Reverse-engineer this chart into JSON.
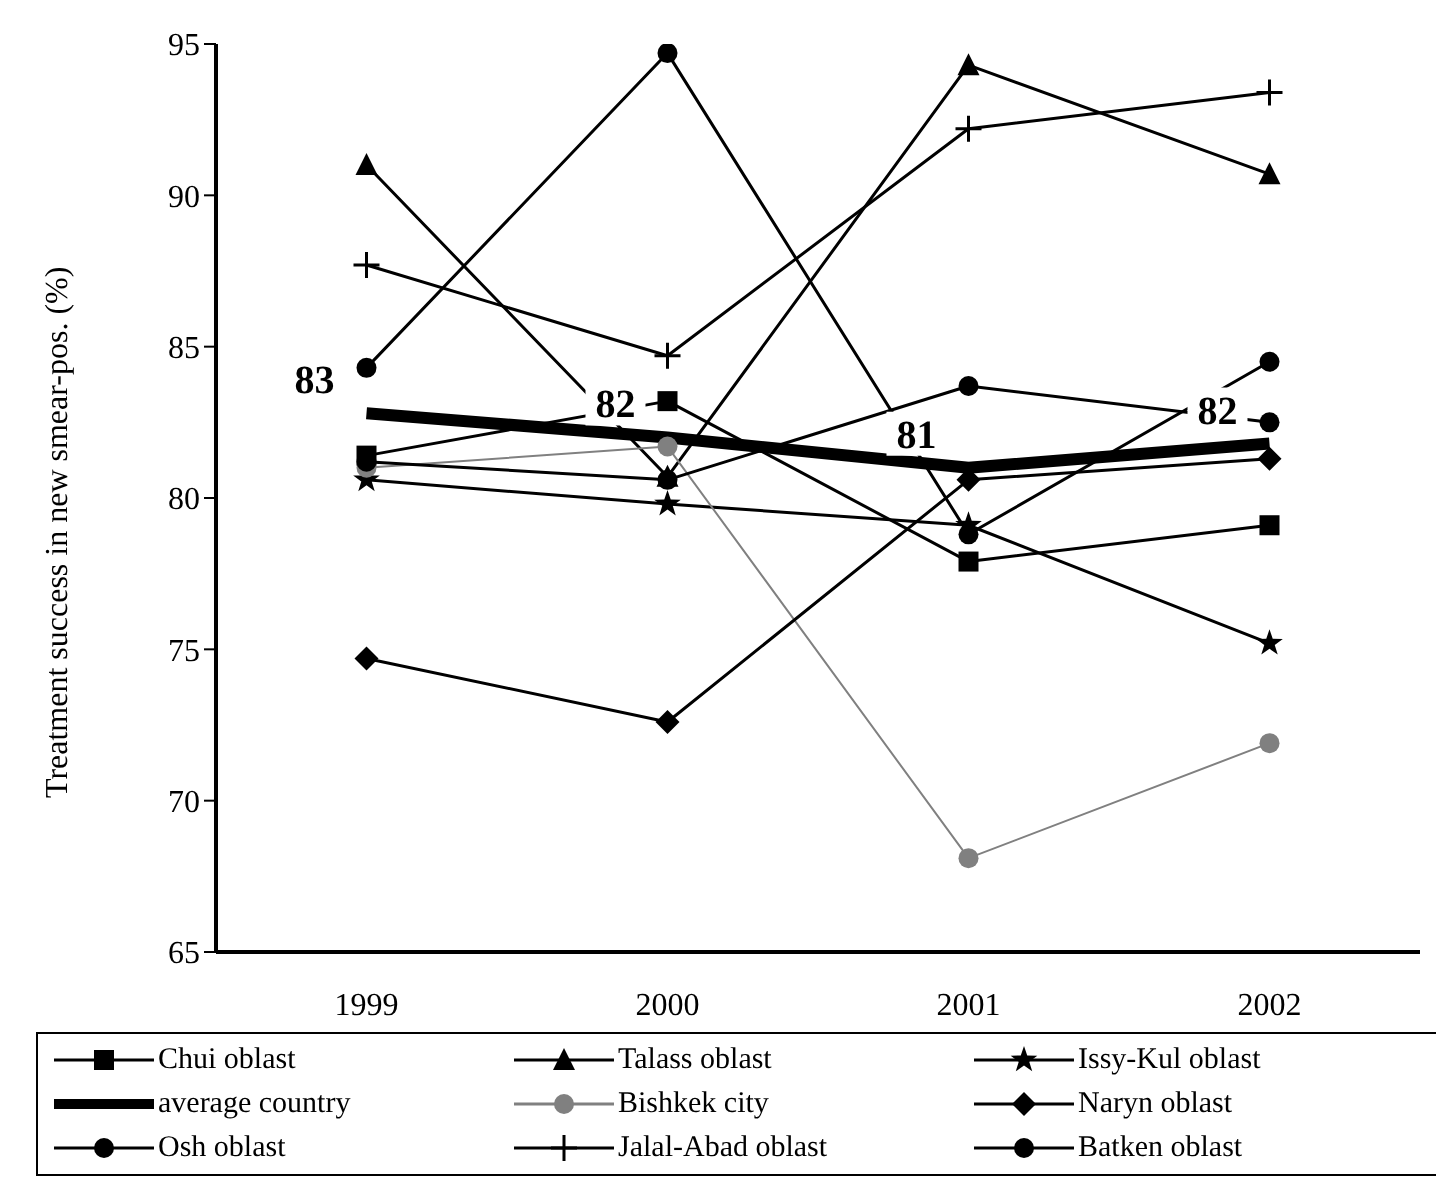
{
  "chart_data": {
    "type": "line",
    "ylabel": "Treatment success in new smear-pos. (%)",
    "categories": [
      "1999",
      "2000",
      "2001",
      "2002"
    ],
    "ylim": [
      65,
      95
    ],
    "yticks": [
      65,
      70,
      75,
      80,
      85,
      90,
      95
    ],
    "grid": false,
    "legend": "bottom",
    "series": [
      {
        "name": "Chui oblast",
        "color": "#000000",
        "marker": "square",
        "values": [
          81.4,
          83.2,
          77.9,
          79.1
        ]
      },
      {
        "name": "Talass oblast",
        "color": "#000000",
        "marker": "triangle",
        "values": [
          91.0,
          80.7,
          94.3,
          90.7
        ]
      },
      {
        "name": "Issy-Kul oblast",
        "color": "#000000",
        "marker": "star",
        "values": [
          80.6,
          79.8,
          79.1,
          75.2
        ]
      },
      {
        "name": "average country",
        "color": "#000000",
        "marker": "none",
        "values": [
          82.8,
          82.0,
          81.0,
          81.8
        ],
        "value_labels": [
          "83",
          "82",
          "81",
          "82"
        ]
      },
      {
        "name": "Bishkek city",
        "color": "#808080",
        "marker": "circle",
        "values": [
          81.0,
          81.7,
          68.1,
          71.9
        ]
      },
      {
        "name": "Naryn oblast",
        "color": "#000000",
        "marker": "diamond",
        "values": [
          74.7,
          72.6,
          80.6,
          81.3
        ]
      },
      {
        "name": "Osh oblast",
        "color": "#000000",
        "marker": "circle",
        "values": [
          81.2,
          80.6,
          83.7,
          82.5
        ]
      },
      {
        "name": "Jalal-Abad oblast",
        "color": "#000000",
        "marker": "cross",
        "values": [
          87.7,
          84.7,
          92.2,
          93.4
        ]
      },
      {
        "name": "Batken oblast",
        "color": "#000000",
        "marker": "circle",
        "values": [
          84.3,
          94.7,
          78.8,
          84.5
        ]
      }
    ]
  }
}
